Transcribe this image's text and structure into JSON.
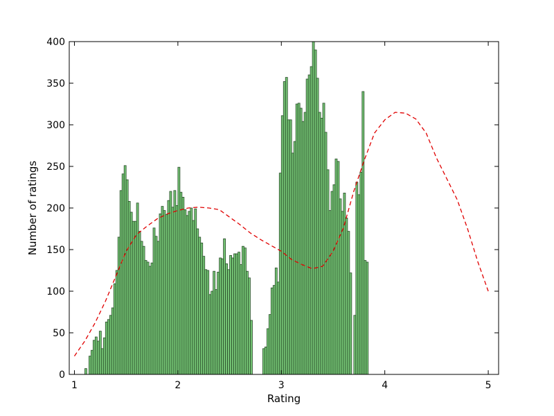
{
  "chart_data": {
    "type": "bar",
    "xlabel": "Rating",
    "ylabel": "Number of ratings",
    "xlim": [
      0.95,
      5.1
    ],
    "ylim": [
      0,
      400
    ],
    "xticks": [
      1,
      2,
      3,
      4,
      5
    ],
    "xtick_labels": [
      "1",
      "2",
      "3",
      "4",
      "5"
    ],
    "yticks": [
      0,
      50,
      100,
      150,
      200,
      250,
      300,
      350,
      400
    ],
    "ytick_labels": [
      "0",
      "50",
      "100",
      "150",
      "200",
      "250",
      "300",
      "350",
      "400"
    ],
    "grid": false,
    "bar_color": "#5cb85c",
    "bar_edge_color": "#2b4d2b",
    "curve_color": "#e00000",
    "bin_start": 1.0,
    "bin_width": 0.02,
    "values": [
      0,
      0,
      0,
      0,
      0,
      7,
      0,
      22,
      29,
      41,
      45,
      40,
      52,
      31,
      44,
      63,
      66,
      71,
      80,
      109,
      125,
      165,
      221,
      241,
      251,
      234,
      208,
      195,
      184,
      184,
      206,
      172,
      160,
      154,
      137,
      135,
      130,
      134,
      176,
      166,
      160,
      193,
      202,
      197,
      192,
      209,
      220,
      201,
      221,
      203,
      249,
      219,
      213,
      198,
      191,
      196,
      200,
      185,
      199,
      175,
      165,
      158,
      142,
      126,
      125,
      96,
      100,
      124,
      102,
      123,
      140,
      139,
      163,
      133,
      126,
      143,
      140,
      145,
      145,
      147,
      132,
      154,
      152,
      124,
      116,
      65,
      0,
      0,
      0,
      0,
      0,
      31,
      33,
      55,
      72,
      104,
      107,
      128,
      111,
      242,
      311,
      352,
      357,
      306,
      306,
      266,
      280,
      325,
      326,
      320,
      304,
      315,
      355,
      360,
      370,
      400,
      390,
      356,
      315,
      308,
      326,
      291,
      246,
      197,
      220,
      228,
      259,
      256,
      211,
      196,
      218,
      188,
      172,
      122,
      0,
      71,
      231,
      216,
      243,
      340,
      137,
      135
    ],
    "curve_x": [
      1.0,
      1.1,
      1.2,
      1.3,
      1.4,
      1.5,
      1.6,
      1.7,
      1.8,
      1.9,
      2.0,
      2.1,
      2.2,
      2.3,
      2.4,
      2.5,
      2.6,
      2.7,
      2.8,
      2.9,
      3.0,
      3.1,
      3.2,
      3.3,
      3.4,
      3.5,
      3.6,
      3.7,
      3.8,
      3.9,
      4.0,
      4.1,
      4.2,
      4.3,
      4.4,
      4.5,
      4.6,
      4.7,
      4.8,
      4.9,
      5.0
    ],
    "curve_y": [
      22,
      40,
      62,
      88,
      118,
      148,
      168,
      178,
      187,
      193,
      197,
      200,
      201,
      200,
      198,
      189,
      180,
      170,
      162,
      155,
      148,
      138,
      132,
      127,
      130,
      148,
      176,
      220,
      257,
      290,
      306,
      315,
      314,
      307,
      290,
      260,
      235,
      210,
      175,
      135,
      100
    ]
  }
}
